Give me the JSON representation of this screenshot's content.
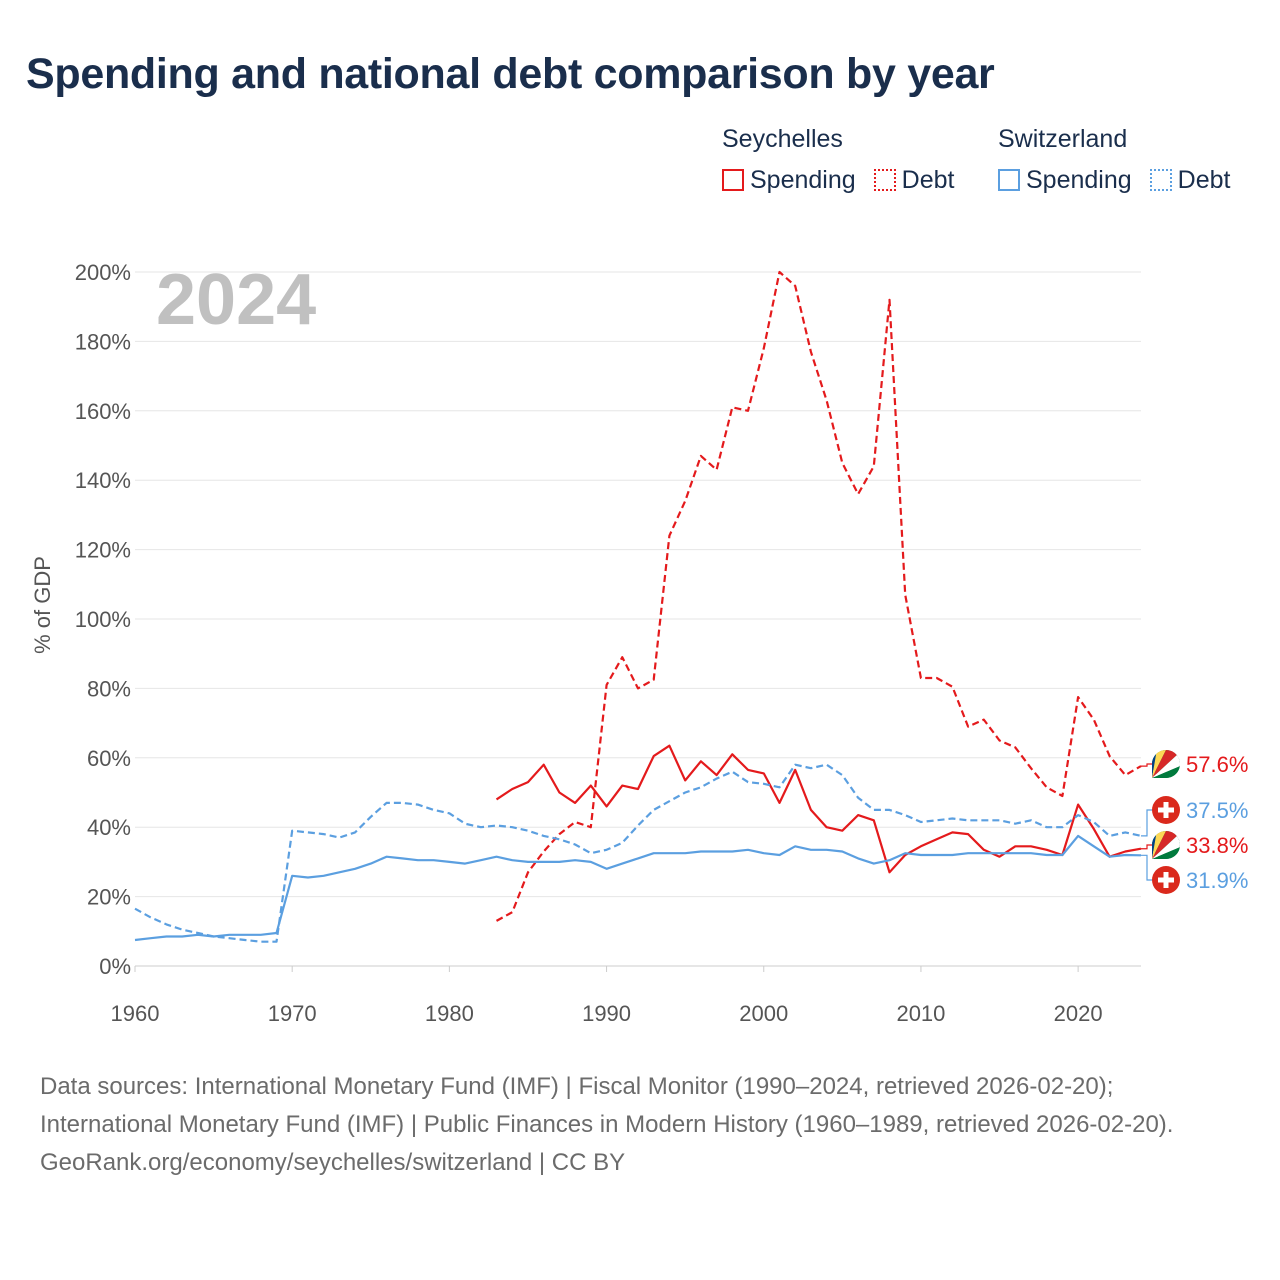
{
  "title": "Spending and national debt comparison by year",
  "year_label": "2024",
  "legend": {
    "groups": [
      {
        "name": "Seychelles",
        "items": [
          {
            "label": "Spending",
            "style": "solid",
            "color": "#e41a1c"
          },
          {
            "label": "Debt",
            "style": "dotted",
            "color": "#e41a1c"
          }
        ]
      },
      {
        "name": "Switzerland",
        "items": [
          {
            "label": "Spending",
            "style": "solid",
            "color": "#5b9fe0"
          },
          {
            "label": "Debt",
            "style": "dotted",
            "color": "#5b9fe0"
          }
        ]
      }
    ]
  },
  "colors": {
    "seychelles": "#e41a1c",
    "switzerland": "#5b9fe0",
    "grid": "#e6e6e6",
    "axis_text": "#555555",
    "title": "#1a2e4c",
    "year": "#c0c0c0"
  },
  "chart_data": {
    "type": "line",
    "title": "Spending and national debt comparison by year",
    "xlabel": "",
    "ylabel": "% of GDP",
    "xlim": [
      1960,
      2024
    ],
    "ylim": [
      0,
      200
    ],
    "x_ticks": [
      1960,
      1970,
      1980,
      1990,
      2000,
      2010,
      2020
    ],
    "y_ticks": [
      0,
      20,
      40,
      60,
      80,
      100,
      120,
      140,
      160,
      180,
      200
    ],
    "y_tick_suffix": "%",
    "series": [
      {
        "name": "Seychelles Debt",
        "country": "seychelles",
        "style": "dashed",
        "end_label": "57.6%",
        "end_value": 57.6,
        "x": [
          1983,
          1984,
          1985,
          1986,
          1987,
          1988,
          1989,
          1990,
          1991,
          1992,
          1993,
          1994,
          1995,
          1996,
          1997,
          1998,
          1999,
          2000,
          2001,
          2002,
          2003,
          2004,
          2005,
          2006,
          2007,
          2008,
          2009,
          2010,
          2011,
          2012,
          2013,
          2014,
          2015,
          2016,
          2017,
          2018,
          2019,
          2020,
          2021,
          2022,
          2023,
          2024
        ],
        "y": [
          13,
          15.5,
          27,
          33,
          38,
          41.5,
          40,
          81,
          89,
          80,
          82.5,
          124,
          134,
          147,
          143,
          161,
          160,
          178,
          200,
          196,
          177,
          163,
          145,
          136,
          144,
          192,
          107,
          83,
          83,
          80.5,
          69,
          71,
          65,
          63,
          57,
          51.5,
          49,
          77.5,
          71,
          60.5,
          55,
          57.6
        ]
      },
      {
        "name": "Seychelles Spending",
        "country": "seychelles",
        "style": "solid",
        "end_label": "33.8%",
        "end_value": 33.8,
        "x": [
          1983,
          1984,
          1985,
          1986,
          1987,
          1988,
          1989,
          1990,
          1991,
          1992,
          1993,
          1994,
          1995,
          1996,
          1997,
          1998,
          1999,
          2000,
          2001,
          2002,
          2003,
          2004,
          2005,
          2006,
          2007,
          2008,
          2009,
          2010,
          2011,
          2012,
          2013,
          2014,
          2015,
          2016,
          2017,
          2018,
          2019,
          2020,
          2021,
          2022,
          2023,
          2024
        ],
        "y": [
          48,
          51,
          53,
          58,
          50,
          47,
          52,
          46,
          52,
          51,
          60.5,
          63.5,
          53.5,
          59,
          55,
          61,
          56.5,
          55.5,
          47,
          56.5,
          45,
          40,
          39,
          43.5,
          42,
          27,
          32,
          34.5,
          36.5,
          38.5,
          38,
          33.5,
          31.5,
          34.5,
          34.5,
          33.5,
          32,
          46.5,
          39.5,
          31.5,
          33,
          33.8
        ]
      },
      {
        "name": "Switzerland Debt",
        "country": "switzerland",
        "style": "dashed",
        "end_label": "37.5%",
        "end_value": 37.5,
        "x": [
          1960,
          1961,
          1962,
          1963,
          1964,
          1965,
          1966,
          1967,
          1968,
          1969,
          1970,
          1971,
          1972,
          1973,
          1974,
          1975,
          1976,
          1977,
          1978,
          1979,
          1980,
          1981,
          1982,
          1983,
          1984,
          1985,
          1986,
          1987,
          1988,
          1989,
          1990,
          1991,
          1992,
          1993,
          1994,
          1995,
          1996,
          1997,
          1998,
          1999,
          2000,
          2001,
          2002,
          2003,
          2004,
          2005,
          2006,
          2007,
          2008,
          2009,
          2010,
          2011,
          2012,
          2013,
          2014,
          2015,
          2016,
          2017,
          2018,
          2019,
          2020,
          2021,
          2022,
          2023,
          2024
        ],
        "y": [
          16.5,
          14,
          12,
          10.5,
          9.5,
          8.5,
          8,
          7.5,
          7,
          7,
          39,
          38.5,
          38,
          37,
          38.5,
          43,
          47,
          47,
          46.5,
          45,
          44,
          41,
          40,
          40.5,
          40,
          39,
          37.5,
          36.5,
          35,
          32.5,
          33.5,
          35.5,
          40.5,
          45,
          47.5,
          50,
          51.5,
          54,
          56,
          53,
          52.5,
          51.5,
          58,
          57,
          58,
          55,
          48.5,
          45,
          45,
          43.5,
          41.5,
          42,
          42.5,
          42,
          42,
          42,
          41,
          42,
          40,
          40,
          43.5,
          41.5,
          37.5,
          38.5,
          37.5
        ]
      },
      {
        "name": "Switzerland Spending",
        "country": "switzerland",
        "style": "solid",
        "end_label": "31.9%",
        "end_value": 31.9,
        "x": [
          1960,
          1961,
          1962,
          1963,
          1964,
          1965,
          1966,
          1967,
          1968,
          1969,
          1970,
          1971,
          1972,
          1973,
          1974,
          1975,
          1976,
          1977,
          1978,
          1979,
          1980,
          1981,
          1982,
          1983,
          1984,
          1985,
          1986,
          1987,
          1988,
          1989,
          1990,
          1991,
          1992,
          1993,
          1994,
          1995,
          1996,
          1997,
          1998,
          1999,
          2000,
          2001,
          2002,
          2003,
          2004,
          2005,
          2006,
          2007,
          2008,
          2009,
          2010,
          2011,
          2012,
          2013,
          2014,
          2015,
          2016,
          2017,
          2018,
          2019,
          2020,
          2021,
          2022,
          2023,
          2024
        ],
        "y": [
          7.5,
          8,
          8.5,
          8.5,
          9,
          8.5,
          9,
          9,
          9,
          9.5,
          26,
          25.5,
          26,
          27,
          28,
          29.5,
          31.5,
          31,
          30.5,
          30.5,
          30,
          29.5,
          30.5,
          31.5,
          30.5,
          30,
          30,
          30,
          30.5,
          30,
          28,
          29.5,
          31,
          32.5,
          32.5,
          32.5,
          33,
          33,
          33,
          33.5,
          32.5,
          32,
          34.5,
          33.5,
          33.5,
          33,
          31,
          29.5,
          30.5,
          32.5,
          32,
          32,
          32,
          32.5,
          32.5,
          32.5,
          32.5,
          32.5,
          32,
          32,
          37.5,
          34.5,
          31.5,
          32,
          31.9
        ]
      }
    ]
  },
  "source": {
    "line1": "Data sources: International Monetary Fund (IMF) | Fiscal Monitor (1990–2024, retrieved 2026-02-20); International Monetary Fund (IMF) | Public Finances in Modern History (1960–1989, retrieved 2026-02-20).",
    "line2": "GeoRank.org/economy/seychelles/switzerland | CC BY"
  }
}
